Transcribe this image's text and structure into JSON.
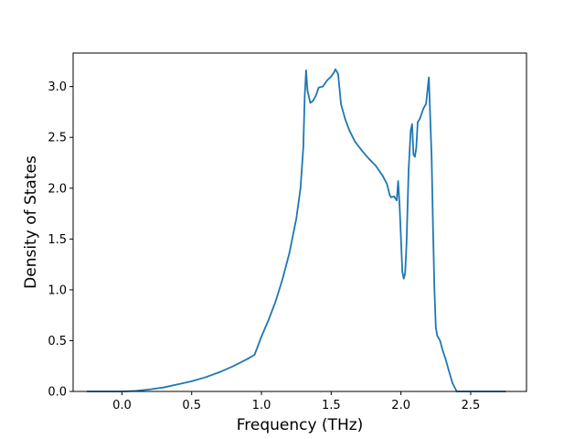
{
  "chart_data": {
    "type": "line",
    "title": "",
    "xlabel": "Frequency (THz)",
    "ylabel": "Density of States",
    "xlim": [
      -0.35,
      2.9
    ],
    "ylim": [
      0.0,
      3.33
    ],
    "x_ticks": [
      "0.0",
      "0.5",
      "1.0",
      "1.5",
      "2.0",
      "2.5"
    ],
    "y_ticks": [
      "0.0",
      "0.5",
      "1.0",
      "1.5",
      "2.0",
      "2.5",
      "3.0"
    ],
    "grid": false,
    "legend": false,
    "colors": {
      "line": "#1f77b4",
      "axes": "#000000",
      "background": "#ffffff"
    },
    "series": [
      {
        "x": [
          -0.25,
          0.0,
          0.1,
          0.2,
          0.3,
          0.4,
          0.5,
          0.6,
          0.7,
          0.8,
          0.9,
          0.95,
          0.97,
          1.0,
          1.05,
          1.1,
          1.15,
          1.2,
          1.25,
          1.28,
          1.3,
          1.31,
          1.32,
          1.33,
          1.35,
          1.37,
          1.39,
          1.41,
          1.44,
          1.47,
          1.5,
          1.52,
          1.53,
          1.54,
          1.55,
          1.57,
          1.6,
          1.63,
          1.67,
          1.72,
          1.77,
          1.82,
          1.87,
          1.9,
          1.92,
          1.93,
          1.95,
          1.97,
          1.98,
          1.99,
          2.01,
          2.02,
          2.03,
          2.04,
          2.055,
          2.07,
          2.08,
          2.09,
          2.1,
          2.11,
          2.12,
          2.13,
          2.14,
          2.16,
          2.18,
          2.2,
          2.22,
          2.23,
          2.24,
          2.25,
          2.26,
          2.28,
          2.3,
          2.32,
          2.34,
          2.37,
          2.4,
          2.45,
          2.48,
          2.5,
          2.55,
          2.75
        ],
        "y": [
          0.0,
          0.0,
          0.005,
          0.02,
          0.04,
          0.07,
          0.1,
          0.14,
          0.19,
          0.25,
          0.32,
          0.36,
          0.43,
          0.54,
          0.7,
          0.88,
          1.1,
          1.36,
          1.7,
          2.0,
          2.4,
          2.9,
          3.16,
          2.96,
          2.84,
          2.86,
          2.91,
          2.99,
          3.0,
          3.06,
          3.1,
          3.14,
          3.17,
          3.15,
          3.12,
          2.83,
          2.68,
          2.57,
          2.46,
          2.37,
          2.29,
          2.22,
          2.12,
          2.04,
          1.93,
          1.91,
          1.92,
          1.88,
          2.07,
          1.84,
          1.18,
          1.11,
          1.16,
          1.45,
          2.18,
          2.57,
          2.63,
          2.33,
          2.31,
          2.4,
          2.65,
          2.67,
          2.7,
          2.78,
          2.83,
          3.09,
          2.3,
          1.6,
          1.0,
          0.63,
          0.55,
          0.5,
          0.4,
          0.32,
          0.22,
          0.08,
          0.0,
          0.0,
          0.0,
          0.0,
          0.0,
          0.0
        ]
      }
    ]
  }
}
